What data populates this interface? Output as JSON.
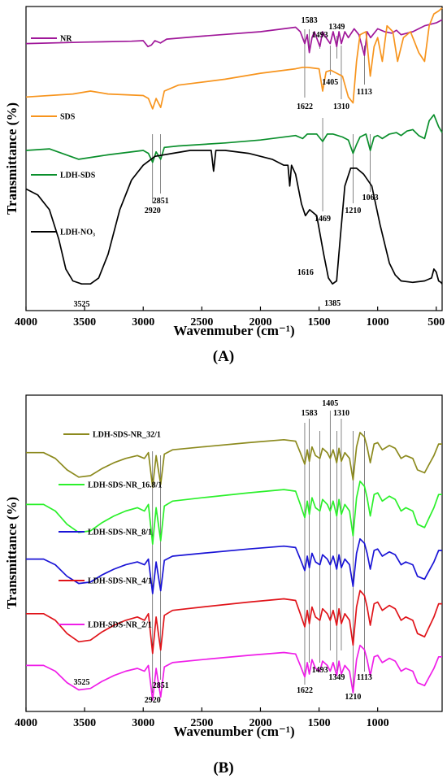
{
  "chart_data": [
    {
      "type": "line",
      "panel_label": "(A)",
      "xlabel": "Wavenmuber (cm⁻¹)",
      "ylabel": "Transmittance (%)",
      "xlim": [
        4000,
        450
      ],
      "x_reversed": true,
      "xticks": [
        4000,
        3500,
        3000,
        2500,
        2000,
        1500,
        1000,
        500
      ],
      "yticks_shown": false,
      "legend": "inline-left",
      "series": [
        {
          "name": "NR",
          "color": "#a0189a",
          "baseline": 0.86,
          "x": [
            4000,
            3500,
            3100,
            3000,
            2960,
            2930,
            2900,
            2853,
            2800,
            2500,
            2000,
            1700,
            1660,
            1622,
            1600,
            1583,
            1560,
            1540,
            1493,
            1470,
            1440,
            1405,
            1380,
            1349,
            1330,
            1310,
            1280,
            1250,
            1200,
            1160,
            1113,
            1090,
            1060,
            1000,
            940,
            880,
            840,
            800,
            700,
            600,
            500,
            450
          ],
          "values": [
            0.86,
            0.865,
            0.868,
            0.87,
            0.85,
            0.855,
            0.87,
            0.862,
            0.875,
            0.885,
            0.9,
            0.915,
            0.9,
            0.86,
            0.89,
            0.83,
            0.88,
            0.9,
            0.85,
            0.9,
            0.88,
            0.86,
            0.9,
            0.85,
            0.9,
            0.86,
            0.9,
            0.88,
            0.91,
            0.89,
            0.82,
            0.9,
            0.88,
            0.91,
            0.9,
            0.895,
            0.905,
            0.89,
            0.9,
            0.92,
            0.93,
            0.94
          ]
        },
        {
          "name": "SDS",
          "color": "#f7941d",
          "baseline": 0.68,
          "x": [
            4000,
            3600,
            3450,
            3300,
            3000,
            2956,
            2920,
            2890,
            2851,
            2820,
            2700,
            2300,
            2000,
            1700,
            1640,
            1600,
            1500,
            1469,
            1440,
            1400,
            1300,
            1250,
            1210,
            1180,
            1150,
            1100,
            1063,
            1030,
            1000,
            960,
            920,
            870,
            830,
            780,
            720,
            650,
            600,
            560,
            520,
            480,
            450
          ],
          "values": [
            0.68,
            0.69,
            0.7,
            0.69,
            0.685,
            0.675,
            0.64,
            0.675,
            0.645,
            0.7,
            0.72,
            0.74,
            0.76,
            0.775,
            0.78,
            0.78,
            0.775,
            0.7,
            0.765,
            0.77,
            0.75,
            0.68,
            0.66,
            0.8,
            0.89,
            0.9,
            0.75,
            0.85,
            0.88,
            0.8,
            0.92,
            0.9,
            0.8,
            0.88,
            0.9,
            0.83,
            0.8,
            0.92,
            0.96,
            0.97,
            0.98
          ]
        },
        {
          "name": "LDH-SDS",
          "color": "#0a8f2c",
          "baseline": 0.5,
          "x": [
            4000,
            3800,
            3550,
            3300,
            3000,
            2956,
            2920,
            2890,
            2851,
            2820,
            2700,
            2300,
            2000,
            1700,
            1640,
            1600,
            1520,
            1469,
            1430,
            1380,
            1300,
            1250,
            1210,
            1180,
            1150,
            1100,
            1063,
            1030,
            1000,
            960,
            900,
            840,
            800,
            750,
            700,
            650,
            600,
            560,
            520,
            480,
            450
          ],
          "values": [
            0.5,
            0.505,
            0.47,
            0.485,
            0.5,
            0.49,
            0.46,
            0.495,
            0.47,
            0.51,
            0.515,
            0.525,
            0.535,
            0.55,
            0.54,
            0.555,
            0.555,
            0.53,
            0.555,
            0.555,
            0.545,
            0.535,
            0.49,
            0.52,
            0.545,
            0.555,
            0.5,
            0.545,
            0.55,
            0.54,
            0.555,
            0.56,
            0.55,
            0.565,
            0.57,
            0.55,
            0.54,
            0.6,
            0.62,
            0.58,
            0.56
          ]
        },
        {
          "name": "LDH-NO₃",
          "color": "#000000",
          "baseline": 0.14,
          "x": [
            4000,
            3900,
            3800,
            3720,
            3660,
            3600,
            3525,
            3450,
            3380,
            3300,
            3200,
            3100,
            3000,
            2900,
            2750,
            2600,
            2500,
            2420,
            2400,
            2380,
            2300,
            2100,
            1900,
            1800,
            1765,
            1750,
            1735,
            1700,
            1650,
            1616,
            1580,
            1520,
            1460,
            1420,
            1385,
            1350,
            1320,
            1280,
            1230,
            1180,
            1120,
            1050,
            980,
            900,
            850,
            800,
            700,
            600,
            540,
            520,
            500,
            480,
            460,
            450
          ],
          "values": [
            0.37,
            0.35,
            0.3,
            0.2,
            0.1,
            0.06,
            0.05,
            0.05,
            0.07,
            0.15,
            0.3,
            0.4,
            0.45,
            0.48,
            0.49,
            0.5,
            0.5,
            0.5,
            0.43,
            0.5,
            0.5,
            0.49,
            0.47,
            0.45,
            0.45,
            0.38,
            0.45,
            0.42,
            0.32,
            0.28,
            0.3,
            0.28,
            0.15,
            0.07,
            0.05,
            0.06,
            0.2,
            0.38,
            0.44,
            0.44,
            0.42,
            0.38,
            0.25,
            0.12,
            0.08,
            0.06,
            0.055,
            0.06,
            0.07,
            0.1,
            0.09,
            0.06,
            0.055,
            0.05
          ]
        }
      ],
      "annotations": [
        {
          "text": "1583",
          "x": 1583
        },
        {
          "text": "1493",
          "x": 1493
        },
        {
          "text": "1349",
          "x": 1349
        },
        {
          "text": "1405",
          "x": 1405
        },
        {
          "text": "1622",
          "x": 1622
        },
        {
          "text": "1310",
          "x": 1310
        },
        {
          "text": "1113",
          "x": 1113
        },
        {
          "text": "2920",
          "x": 2920
        },
        {
          "text": "2851",
          "x": 2851
        },
        {
          "text": "1469",
          "x": 1469
        },
        {
          "text": "1210",
          "x": 1210
        },
        {
          "text": "1063",
          "x": 1063
        },
        {
          "text": "3525",
          "x": 3525
        },
        {
          "text": "1616",
          "x": 1616
        },
        {
          "text": "1385",
          "x": 1385
        }
      ]
    },
    {
      "type": "line",
      "panel_label": "(B)",
      "xlabel": "Wavenumber (cm⁻¹)",
      "ylabel": "Transmittance (%)",
      "xlim": [
        4000,
        450
      ],
      "x_reversed": true,
      "xticks": [
        4000,
        3500,
        3000,
        2500,
        2000,
        1500,
        1000
      ],
      "yticks_shown": false,
      "legend": "inline-left",
      "series": [
        {
          "name": "LDH-SDS-NR_32/1",
          "color": "#8c8a1e",
          "baseline": 0.8
        },
        {
          "name": "LDH-SDS-NR_16.8/1",
          "color": "#2bf02b",
          "baseline": 0.62
        },
        {
          "name": "LDH-SDS-NR_8/1",
          "color": "#1a14d6",
          "baseline": 0.43
        },
        {
          "name": "LDH-SDS-NR_4/1",
          "color": "#e0141a",
          "baseline": 0.24
        },
        {
          "name": "LDH-SDS-NR_2/1",
          "color": "#ef1ee8",
          "baseline": 0.06
        }
      ],
      "shared_shape": {
        "x": [
          4000,
          3850,
          3750,
          3650,
          3550,
          3450,
          3350,
          3250,
          3150,
          3050,
          2990,
          2956,
          2920,
          2890,
          2851,
          2820,
          2750,
          2500,
          2100,
          1800,
          1700,
          1660,
          1622,
          1600,
          1583,
          1560,
          1530,
          1493,
          1470,
          1430,
          1405,
          1380,
          1349,
          1330,
          1310,
          1280,
          1240,
          1210,
          1180,
          1150,
          1113,
          1090,
          1063,
          1030,
          1000,
          960,
          900,
          850,
          800,
          760,
          700,
          660,
          600,
          560,
          520,
          480,
          450
        ],
        "offsets": [
          0.0,
          0.0,
          -0.02,
          -0.06,
          -0.085,
          -0.08,
          -0.055,
          -0.035,
          -0.02,
          -0.01,
          -0.02,
          0.0,
          -0.12,
          -0.01,
          -0.11,
          -0.005,
          0.01,
          0.02,
          0.035,
          0.045,
          0.04,
          0.0,
          -0.04,
          0.01,
          -0.03,
          0.02,
          -0.01,
          -0.02,
          0.015,
          0.0,
          -0.02,
          0.01,
          -0.035,
          0.015,
          -0.03,
          0.0,
          -0.02,
          -0.095,
          0.02,
          0.07,
          0.055,
          0.02,
          -0.035,
          0.03,
          0.035,
          0.01,
          0.025,
          0.015,
          -0.02,
          -0.01,
          -0.02,
          -0.06,
          -0.07,
          -0.04,
          -0.01,
          0.03,
          0.03
        ]
      },
      "annotations": [
        {
          "text": "1583",
          "x": 1583
        },
        {
          "text": "1405",
          "x": 1405
        },
        {
          "text": "1310",
          "x": 1310
        },
        {
          "text": "1493",
          "x": 1493
        },
        {
          "text": "1349",
          "x": 1349
        },
        {
          "text": "1113",
          "x": 1113
        },
        {
          "text": "1622",
          "x": 1622
        },
        {
          "text": "1210",
          "x": 1210
        },
        {
          "text": "3525",
          "x": 3525
        },
        {
          "text": "2920",
          "x": 2920
        },
        {
          "text": "2851",
          "x": 2851
        }
      ]
    }
  ]
}
